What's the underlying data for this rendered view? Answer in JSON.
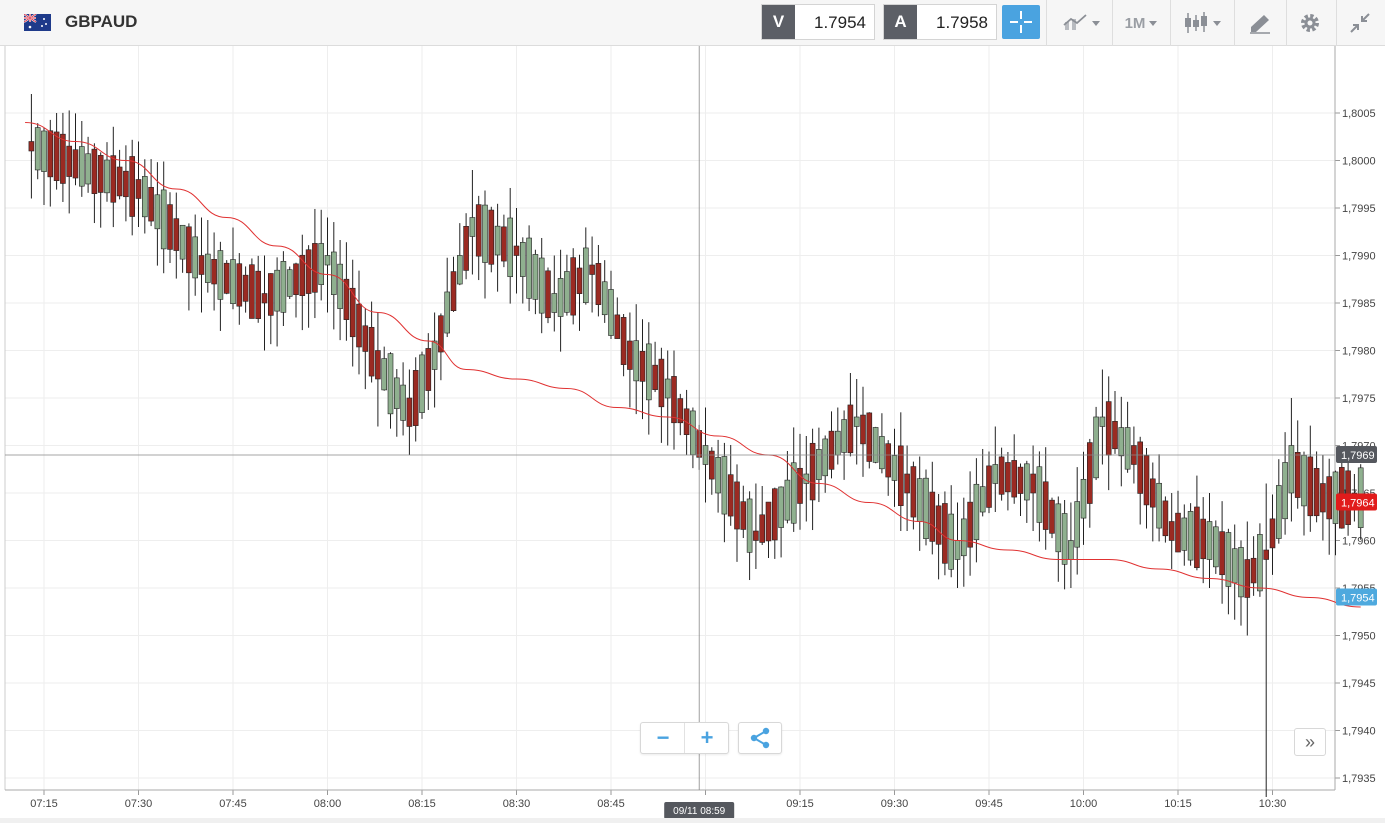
{
  "header": {
    "symbol": "GBPAUD",
    "flag_icon": "gb-au-flag-icon",
    "bid": {
      "label": "V",
      "value": "1.7954"
    },
    "ask": {
      "label": "A",
      "value": "1.7958"
    },
    "timeframe_label": "1M",
    "accent_color": "#4aa3e0"
  },
  "chart_data": {
    "type": "candlestick",
    "ylim": [
      1.7931,
      1.801
    ],
    "ytick_values": [
      1.8005,
      1.8,
      1.7995,
      1.799,
      1.7985,
      1.798,
      1.7975,
      1.797,
      1.7965,
      1.796,
      1.7955,
      1.795,
      1.7945,
      1.794,
      1.7935
    ],
    "ytick_labels": [
      "1,8005",
      "1,8000",
      "1,7995",
      "1,7990",
      "1,7985",
      "1,7980",
      "1,7975",
      "1,7970",
      "1,7965",
      "1,7960",
      "1,7955",
      "1,7950",
      "1,7945",
      "1,7940",
      "1,7935"
    ],
    "x_start_minutes": 432,
    "x_end_minutes": 644,
    "xtick_minutes": [
      435,
      450,
      465,
      480,
      495,
      510,
      525,
      540,
      555,
      570,
      585,
      600,
      615,
      630
    ],
    "xtick_labels": [
      "07:15",
      "07:30",
      "07:45",
      "08:00",
      "08:15",
      "08:30",
      "08:45",
      "09:15",
      "09:30",
      "09:45",
      "10:00",
      "10:15",
      "10:30"
    ],
    "xtick_label_minutes": [
      435,
      450,
      465,
      480,
      495,
      510,
      525,
      555,
      570,
      585,
      600,
      615,
      630
    ],
    "crosshair": {
      "x_minutes": 539,
      "price": 1.7969,
      "x_label": "09/11 08:59",
      "y_label": "1,7969"
    },
    "last_price": {
      "price": 1.7964,
      "label": "1,7964",
      "color": "#e11b1b"
    },
    "bid_price": {
      "price": 1.7954,
      "label": "1,7954",
      "color": "#4ea9de"
    },
    "up_color": "#8fb08f",
    "down_color": "#9b2a22",
    "ma_color": "#e03131",
    "ma_anchors": [
      [
        432,
        1.8004
      ],
      [
        440,
        1.8002
      ],
      [
        448,
        1.8
      ],
      [
        456,
        1.7997
      ],
      [
        464,
        1.7994
      ],
      [
        472,
        1.7991
      ],
      [
        480,
        1.7988
      ],
      [
        488,
        1.7984
      ],
      [
        496,
        1.7981
      ],
      [
        502,
        1.7978
      ],
      [
        510,
        1.7977
      ],
      [
        518,
        1.7976
      ],
      [
        526,
        1.7974
      ],
      [
        534,
        1.7973
      ],
      [
        542,
        1.7971
      ],
      [
        550,
        1.7969
      ],
      [
        558,
        1.7966
      ],
      [
        566,
        1.7964
      ],
      [
        574,
        1.7962
      ],
      [
        580,
        1.796
      ],
      [
        588,
        1.7959
      ],
      [
        596,
        1.7958
      ],
      [
        604,
        1.7958
      ],
      [
        612,
        1.7957
      ],
      [
        620,
        1.7956
      ],
      [
        628,
        1.7955
      ],
      [
        636,
        1.7954
      ],
      [
        644,
        1.7953
      ]
    ],
    "candle_path": [
      [
        433,
        1.8002,
        1.8001,
        1.8007,
        1.7996
      ],
      [
        450,
        1.7998,
        1.7996,
        1.8002,
        1.7993
      ],
      [
        460,
        1.799,
        1.7988,
        1.7994,
        1.7984
      ],
      [
        470,
        1.7986,
        1.7985,
        1.799,
        1.798
      ],
      [
        480,
        1.7989,
        1.799,
        1.7994,
        1.7984
      ],
      [
        488,
        1.798,
        1.7977,
        1.7984,
        1.7972
      ],
      [
        493,
        1.7975,
        1.7972,
        1.7978,
        1.7969
      ],
      [
        497,
        1.7978,
        1.7981,
        1.7984,
        1.7974
      ],
      [
        503,
        1.7992,
        1.7994,
        1.7999,
        1.7988
      ],
      [
        510,
        1.7991,
        1.799,
        1.7995,
        1.7986
      ],
      [
        516,
        1.7984,
        1.7986,
        1.799,
        1.7982
      ],
      [
        522,
        1.7989,
        1.7988,
        1.7992,
        1.7984
      ],
      [
        528,
        1.7981,
        1.7978,
        1.7984,
        1.7974
      ],
      [
        534,
        1.7975,
        1.7977,
        1.798,
        1.797
      ],
      [
        540,
        1.7968,
        1.797,
        1.7974,
        1.7964
      ],
      [
        548,
        1.7961,
        1.796,
        1.7966,
        1.7957
      ],
      [
        556,
        1.7966,
        1.7967,
        1.7971,
        1.7962
      ],
      [
        564,
        1.7972,
        1.7973,
        1.7977,
        1.7968
      ],
      [
        572,
        1.7967,
        1.7965,
        1.797,
        1.7961
      ],
      [
        580,
        1.7958,
        1.796,
        1.7964,
        1.7955
      ],
      [
        586,
        1.7966,
        1.7968,
        1.7972,
        1.7963
      ],
      [
        592,
        1.7967,
        1.7965,
        1.797,
        1.7961
      ],
      [
        598,
        1.7958,
        1.796,
        1.7964,
        1.7955
      ],
      [
        603,
        1.7972,
        1.7973,
        1.7978,
        1.7968
      ],
      [
        608,
        1.797,
        1.7968,
        1.7972,
        1.7966
      ],
      [
        614,
        1.7962,
        1.796,
        1.7965,
        1.7957
      ],
      [
        620,
        1.7958,
        1.7962,
        1.7965,
        1.7955
      ],
      [
        626,
        1.7958,
        1.7954,
        1.7962,
        1.795
      ],
      [
        629,
        1.7959,
        1.7958,
        1.7966,
        1.7933
      ],
      [
        633,
        1.7965,
        1.797,
        1.7975,
        1.7962
      ],
      [
        638,
        1.7966,
        1.7963,
        1.7969,
        1.796
      ],
      [
        643,
        1.7965,
        1.7964,
        1.7967,
        1.7962
      ]
    ]
  },
  "controls": {
    "zoom_out_icon": "minus-icon",
    "zoom_in_icon": "plus-icon",
    "share_icon": "share-icon",
    "scroll_icon": "double-chevron-right-icon"
  }
}
